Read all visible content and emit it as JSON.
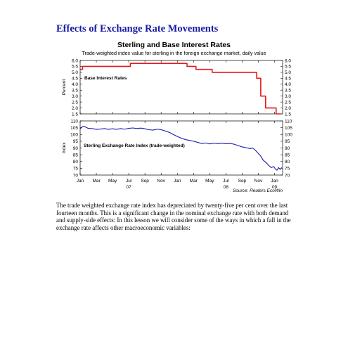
{
  "page": {
    "heading": "Effects of Exchange Rate Movements",
    "paragraph": "The trade weighted exchange rate index has depreciated by twenty-five per cent over the last fourteen months. This is a significant change in the nominal exchange rate with both demand and supply-side effects: In this lesson we will consider some of the ways in which a fall in the exchange rate affects other macroeconomic variables:"
  },
  "chart_data": {
    "type": "line",
    "title": "Sterling and Base Interest Rates",
    "subtitle": "Trade-weighted index value for sterling in the foreign exchange market, daily value",
    "source": "Source: Reuters EcoWin",
    "colors": {
      "interest_rate": "#e41a1c",
      "exchange_index": "#1a1ab0"
    },
    "x_ticks": [
      "Jan",
      "Mar",
      "May",
      "Jul",
      "Sep",
      "Nov",
      "Jan",
      "Mar",
      "May",
      "Jul",
      "Sep",
      "Nov",
      "Jan"
    ],
    "x_tick_months": [
      0,
      2,
      4,
      6,
      8,
      10,
      12,
      14,
      16,
      18,
      20,
      22,
      24
    ],
    "year_labels": [
      {
        "label": "07",
        "month": 6
      },
      {
        "label": "08",
        "month": 18
      },
      {
        "label": "09",
        "month": 24
      }
    ],
    "xlim_months": [
      0,
      25
    ],
    "panels": [
      {
        "ylabel": "Percent",
        "ylim": [
          1.5,
          6.0
        ],
        "yticks": [
          "6.0",
          "5.5",
          "5.0",
          "4.5",
          "4.0",
          "3.5",
          "3.0",
          "2.5",
          "2.0",
          "1.5"
        ],
        "ytick_values": [
          6.0,
          5.5,
          5.0,
          4.5,
          4.0,
          3.5,
          3.0,
          2.5,
          2.0,
          1.5
        ],
        "series": [
          {
            "name": "Base Interest Rates",
            "step": true,
            "points": [
              [
                0,
                5.25
              ],
              [
                0.3,
                5.5
              ],
              [
                4.2,
                5.5
              ],
              [
                6.2,
                5.75
              ],
              [
                11.2,
                5.75
              ],
              [
                13.2,
                5.5
              ],
              [
                14.3,
                5.25
              ],
              [
                16.3,
                5.0
              ],
              [
                21.3,
                5.0
              ],
              [
                21.8,
                4.5
              ],
              [
                22.3,
                3.0
              ],
              [
                22.9,
                2.0
              ],
              [
                24.2,
                1.5
              ],
              [
                24.7,
                1.5
              ]
            ]
          }
        ]
      },
      {
        "ylabel": "Index",
        "ylim": [
          70,
          110
        ],
        "yticks": [
          "110",
          "105",
          "100",
          "95",
          "90",
          "85",
          "80",
          "75",
          "70"
        ],
        "ytick_values": [
          110,
          105,
          100,
          95,
          90,
          85,
          80,
          75,
          70
        ],
        "series": [
          {
            "name": "Sterling Exchange Rate Index (trade-weighted)",
            "points": [
              [
                0,
                104
              ],
              [
                0.2,
                105.5
              ],
              [
                0.5,
                106
              ],
              [
                1,
                104.5
              ],
              [
                1.5,
                104.3
              ],
              [
                2,
                103.8
              ],
              [
                2.5,
                104
              ],
              [
                3,
                104.3
              ],
              [
                3.5,
                103.8
              ],
              [
                4,
                104.2
              ],
              [
                4.5,
                103.8
              ],
              [
                5,
                104.3
              ],
              [
                5.5,
                103.9
              ],
              [
                6,
                104.5
              ],
              [
                6.5,
                104.8
              ],
              [
                7,
                104.4
              ],
              [
                7.5,
                104.7
              ],
              [
                8,
                104.2
              ],
              [
                8.5,
                103.5
              ],
              [
                9,
                103.2
              ],
              [
                9.5,
                103.9
              ],
              [
                10,
                103.5
              ],
              [
                10.5,
                102.6
              ],
              [
                11,
                101.6
              ],
              [
                11.5,
                100
              ],
              [
                12,
                98.5
              ],
              [
                12.5,
                97.2
              ],
              [
                13,
                96.2
              ],
              [
                13.5,
                95.6
              ],
              [
                14,
                95
              ],
              [
                14.5,
                94.2
              ],
              [
                15,
                93.3
              ],
              [
                15.5,
                93.7
              ],
              [
                16,
                93
              ],
              [
                16.5,
                93.5
              ],
              [
                17,
                93.2
              ],
              [
                17.5,
                93.6
              ],
              [
                18,
                93.1
              ],
              [
                18.5,
                93.4
              ],
              [
                19,
                92.8
              ],
              [
                19.5,
                91.8
              ],
              [
                20,
                90.8
              ],
              [
                20.5,
                90.2
              ],
              [
                21,
                89.5
              ],
              [
                21.3,
                90
              ],
              [
                21.6,
                88.5
              ],
              [
                22,
                86
              ],
              [
                22.3,
                84
              ],
              [
                22.6,
                81
              ],
              [
                23,
                79
              ],
              [
                23.3,
                77
              ],
              [
                23.6,
                75.5
              ],
              [
                23.9,
                76.3
              ],
              [
                24.1,
                74.5
              ],
              [
                24.3,
                73.5
              ],
              [
                24.5,
                75.5
              ],
              [
                24.7,
                74.2
              ],
              [
                24.9,
                75.6
              ]
            ]
          }
        ]
      }
    ]
  }
}
